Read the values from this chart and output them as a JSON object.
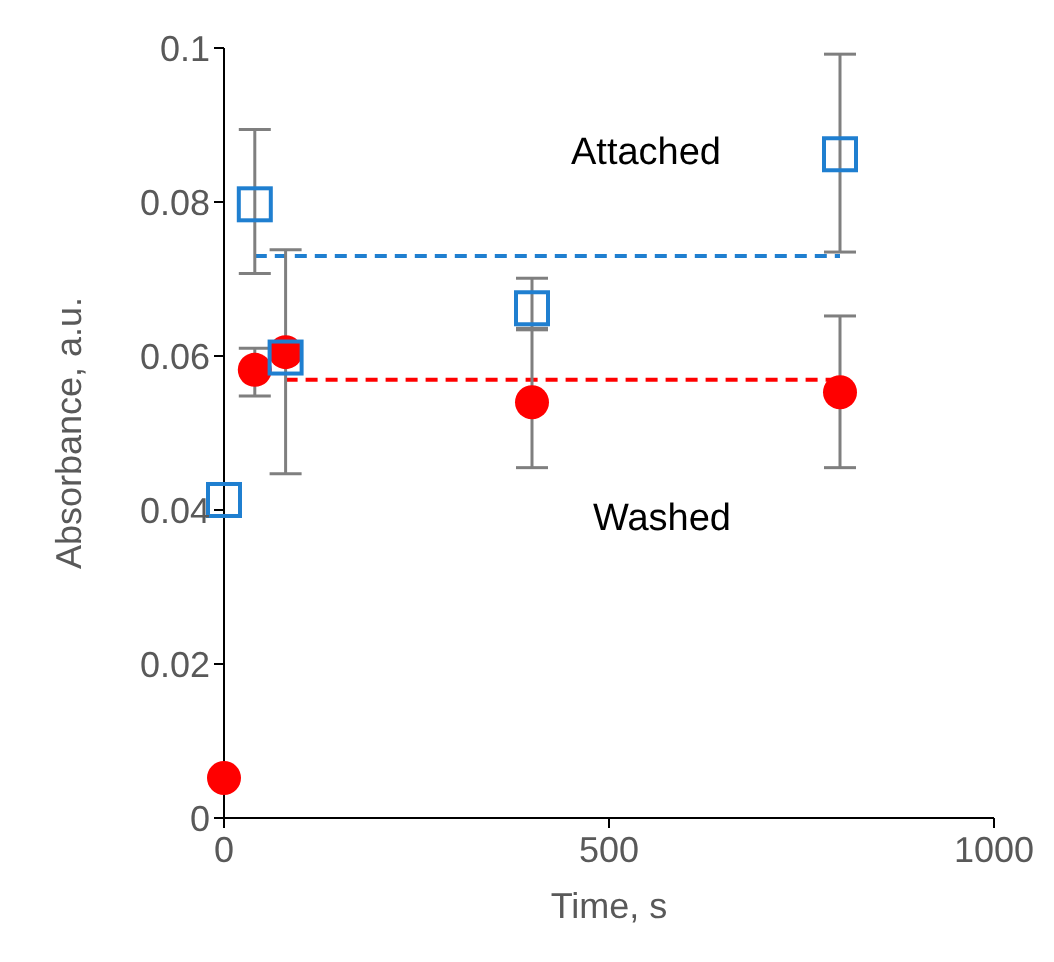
{
  "chart_data": {
    "type": "scatter",
    "xlabel": "Time, s",
    "ylabel": "Absorbance, a.u.",
    "xlim": [
      0,
      1000
    ],
    "xticks": [
      0,
      500,
      1000
    ],
    "ylim": [
      0,
      0.1
    ],
    "yticks": [
      0,
      0.02,
      0.04,
      0.06,
      0.08,
      0.1
    ],
    "series": [
      {
        "marker": "square",
        "color": "#1f7fd0",
        "x": [
          0,
          40,
          80,
          400,
          800
        ],
        "values": [
          0.0413,
          0.0797,
          0.0598,
          0.0662,
          0.0862
        ],
        "errors": [
          null,
          [
            0.0707,
            0.0894
          ],
          [
            0.0447,
            0.0738
          ],
          [
            0.0636,
            0.0701
          ],
          [
            0.0735,
            0.0992
          ]
        ]
      },
      {
        "marker": "circle",
        "color": "#ff0000",
        "x": [
          0,
          40,
          80,
          400,
          800
        ],
        "values": [
          0.0052,
          0.0582,
          0.0605,
          0.054,
          0.0553
        ],
        "errors": [
          null,
          [
            0.0548,
            0.061
          ],
          null,
          [
            0.0455,
            0.0634
          ],
          [
            0.0455,
            0.0652
          ]
        ]
      },
      {
        "type": "line",
        "marker": "none",
        "line_style": "dashed",
        "color": "#1f7fd0",
        "x": [
          40,
          800
        ],
        "values": [
          0.073,
          0.073
        ]
      },
      {
        "type": "line",
        "marker": "none",
        "line_style": "dashed",
        "color": "#ff0000",
        "x": [
          80,
          800
        ],
        "values": [
          0.0569,
          0.0569
        ]
      }
    ],
    "annotations": [
      "Attached",
      "Washed"
    ]
  }
}
